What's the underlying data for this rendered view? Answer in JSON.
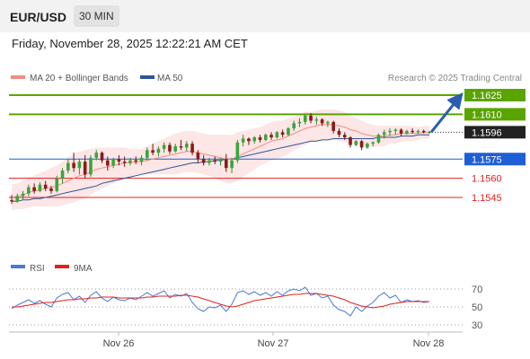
{
  "header": {
    "symbol": "EUR/USD",
    "timeframe": "30 MIN",
    "datetime": "Friday, November 28, 2025 12:22:21 AM CET"
  },
  "legend": {
    "items": [
      {
        "label": "MA 20 + Bollinger Bands",
        "color": "#f28b82"
      },
      {
        "label": "MA 50",
        "color": "#2f5597"
      }
    ],
    "credit": "Research © 2025 Trading Central"
  },
  "chart_data": {
    "type": "candlestick",
    "instrument": "EUR/USD",
    "interval": "30 MIN",
    "price_range": [
      1.1535,
      1.163
    ],
    "current_price": 1.1596,
    "current_price_label": "1.1596",
    "levels": [
      {
        "value": 1.1625,
        "label": "1.1625",
        "kind": "target",
        "color": "#5aa400"
      },
      {
        "value": 1.161,
        "label": "1.1610",
        "kind": "target",
        "color": "#5aa400"
      },
      {
        "value": 1.1575,
        "label": "1.1575",
        "kind": "pivot",
        "color": "#1f5fd6"
      },
      {
        "value": 1.156,
        "label": "1.1560",
        "kind": "support",
        "color": "#e02020"
      },
      {
        "value": 1.1545,
        "label": "1.1545",
        "kind": "support",
        "color": "#e02020"
      }
    ],
    "x_labels": [
      "Nov 26",
      "Nov 27",
      "Nov 28"
    ],
    "candles": [
      [
        1.1543,
        1.1547,
        1.154,
        1.1542
      ],
      [
        1.1542,
        1.1548,
        1.1541,
        1.1546
      ],
      [
        1.1546,
        1.155,
        1.1543,
        1.1548
      ],
      [
        1.1548,
        1.1555,
        1.1546,
        1.1553
      ],
      [
        1.1553,
        1.1556,
        1.1548,
        1.155
      ],
      [
        1.155,
        1.1557,
        1.1549,
        1.1555
      ],
      [
        1.1555,
        1.1558,
        1.155,
        1.1552
      ],
      [
        1.1552,
        1.1554,
        1.1548,
        1.155
      ],
      [
        1.155,
        1.1562,
        1.1549,
        1.156
      ],
      [
        1.156,
        1.1568,
        1.1556,
        1.1566
      ],
      [
        1.1566,
        1.1575,
        1.1564,
        1.1572
      ],
      [
        1.1572,
        1.158,
        1.1565,
        1.1568
      ],
      [
        1.1568,
        1.1575,
        1.1563,
        1.1573
      ],
      [
        1.1573,
        1.1578,
        1.156,
        1.1563
      ],
      [
        1.1563,
        1.1578,
        1.1561,
        1.1576
      ],
      [
        1.1576,
        1.1582,
        1.1574,
        1.158
      ],
      [
        1.158,
        1.1581,
        1.1572,
        1.1574
      ],
      [
        1.1574,
        1.1577,
        1.1566,
        1.157
      ],
      [
        1.157,
        1.1576,
        1.1568,
        1.1575
      ],
      [
        1.1575,
        1.1578,
        1.157,
        1.1573
      ],
      [
        1.1573,
        1.1577,
        1.1569,
        1.1572
      ],
      [
        1.1572,
        1.1576,
        1.157,
        1.1574
      ],
      [
        1.1574,
        1.1577,
        1.1571,
        1.1573
      ],
      [
        1.1573,
        1.1578,
        1.157,
        1.1576
      ],
      [
        1.1576,
        1.1584,
        1.1574,
        1.1582
      ],
      [
        1.1582,
        1.1587,
        1.1578,
        1.158
      ],
      [
        1.158,
        1.1585,
        1.1577,
        1.1583
      ],
      [
        1.1583,
        1.1588,
        1.158,
        1.1586
      ],
      [
        1.1586,
        1.1588,
        1.1579,
        1.1581
      ],
      [
        1.1581,
        1.1587,
        1.158,
        1.1585
      ],
      [
        1.1585,
        1.159,
        1.1582,
        1.1584
      ],
      [
        1.1584,
        1.1589,
        1.1581,
        1.1587
      ],
      [
        1.1587,
        1.1589,
        1.1578,
        1.158
      ],
      [
        1.158,
        1.1582,
        1.1572,
        1.1575
      ],
      [
        1.1575,
        1.1578,
        1.157,
        1.1572
      ],
      [
        1.1572,
        1.1576,
        1.157,
        1.1574
      ],
      [
        1.1574,
        1.1577,
        1.1571,
        1.1573
      ],
      [
        1.1573,
        1.1576,
        1.157,
        1.1575
      ],
      [
        1.1575,
        1.1579,
        1.1565,
        1.1568
      ],
      [
        1.1568,
        1.1576,
        1.1564,
        1.1574
      ],
      [
        1.1574,
        1.159,
        1.1572,
        1.1588
      ],
      [
        1.1588,
        1.1594,
        1.1585,
        1.1591
      ],
      [
        1.1591,
        1.1592,
        1.1586,
        1.1589
      ],
      [
        1.1589,
        1.1593,
        1.1587,
        1.1592
      ],
      [
        1.1592,
        1.1594,
        1.1588,
        1.159
      ],
      [
        1.159,
        1.1595,
        1.1589,
        1.1594
      ],
      [
        1.1594,
        1.1596,
        1.159,
        1.1592
      ],
      [
        1.1592,
        1.1597,
        1.1591,
        1.1596
      ],
      [
        1.1596,
        1.1598,
        1.1592,
        1.1594
      ],
      [
        1.1594,
        1.16,
        1.1593,
        1.1599
      ],
      [
        1.1599,
        1.1605,
        1.1597,
        1.1603
      ],
      [
        1.1603,
        1.1607,
        1.16,
        1.1604
      ],
      [
        1.1604,
        1.161,
        1.1602,
        1.1609
      ],
      [
        1.1609,
        1.1611,
        1.1603,
        1.1605
      ],
      [
        1.1605,
        1.1608,
        1.1602,
        1.1606
      ],
      [
        1.1606,
        1.1607,
        1.1601,
        1.1603
      ],
      [
        1.1603,
        1.1605,
        1.16,
        1.1604
      ],
      [
        1.1604,
        1.1605,
        1.1595,
        1.1597
      ],
      [
        1.1597,
        1.1599,
        1.1592,
        1.1594
      ],
      [
        1.1594,
        1.1596,
        1.159,
        1.1592
      ],
      [
        1.1592,
        1.1593,
        1.1584,
        1.1586
      ],
      [
        1.1586,
        1.159,
        1.1585,
        1.1589
      ],
      [
        1.1589,
        1.159,
        1.1582,
        1.1584
      ],
      [
        1.1584,
        1.1588,
        1.1583,
        1.1587
      ],
      [
        1.1587,
        1.1589,
        1.1585,
        1.1588
      ],
      [
        1.1588,
        1.1595,
        1.1587,
        1.1594
      ],
      [
        1.1594,
        1.1598,
        1.1591,
        1.1596
      ],
      [
        1.1596,
        1.1599,
        1.1593,
        1.1597
      ],
      [
        1.1597,
        1.1599,
        1.1594,
        1.1598
      ],
      [
        1.1598,
        1.1599,
        1.1593,
        1.1595
      ],
      [
        1.1595,
        1.1598,
        1.1594,
        1.1597
      ],
      [
        1.1597,
        1.1599,
        1.1595,
        1.1596
      ],
      [
        1.1596,
        1.1598,
        1.1595,
        1.1597
      ],
      [
        1.1597,
        1.1598,
        1.1595,
        1.1596
      ],
      [
        1.1596,
        1.1597,
        1.1595,
        1.1596
      ]
    ],
    "ma20": [
      1.1545,
      1.1546,
      1.1547,
      1.1549,
      1.155,
      1.1551,
      1.1552,
      1.1553,
      1.1554,
      1.1556,
      1.1558,
      1.156,
      1.1562,
      1.1563,
      1.1565,
      1.1567,
      1.1568,
      1.1569,
      1.157,
      1.1571,
      1.1572,
      1.1572,
      1.1573,
      1.1573,
      1.1574,
      1.1575,
      1.1576,
      1.1577,
      1.1578,
      1.1579,
      1.158,
      1.1581,
      1.1581,
      1.158,
      1.1579,
      1.1578,
      1.1577,
      1.1576,
      1.1575,
      1.1575,
      1.1577,
      1.1579,
      1.1581,
      1.1583,
      1.1585,
      1.1587,
      1.1589,
      1.159,
      1.1591,
      1.1593,
      1.1595,
      1.1597,
      1.1599,
      1.16,
      1.1601,
      1.1602,
      1.1602,
      1.1602,
      1.1601,
      1.16,
      1.1598,
      1.1597,
      1.1595,
      1.1594,
      1.1593,
      1.1593,
      1.1593,
      1.1594,
      1.1594,
      1.1595,
      1.1595,
      1.1595,
      1.1595,
      1.1596,
      1.1596
    ],
    "ma50": [
      1.1542,
      1.1542,
      1.1543,
      1.1543,
      1.1544,
      1.1544,
      1.1545,
      1.1546,
      1.1547,
      1.1548,
      1.1549,
      1.155,
      1.1551,
      1.1552,
      1.1553,
      1.1554,
      1.1556,
      1.1557,
      1.1558,
      1.1559,
      1.156,
      1.1561,
      1.1562,
      1.1563,
      1.1564,
      1.1565,
      1.1566,
      1.1567,
      1.1568,
      1.1569,
      1.157,
      1.1571,
      1.1572,
      1.1572,
      1.1573,
      1.1573,
      1.1574,
      1.1574,
      1.1575,
      1.1575,
      1.1576,
      1.1577,
      1.1578,
      1.1579,
      1.158,
      1.1581,
      1.1582,
      1.1583,
      1.1584,
      1.1585,
      1.1586,
      1.1587,
      1.1588,
      1.1589,
      1.1589,
      1.159,
      1.159,
      1.1591,
      1.1591,
      1.1591,
      1.1591,
      1.1591,
      1.1591,
      1.1591,
      1.1591,
      1.1592,
      1.1592,
      1.1592,
      1.1592,
      1.1593,
      1.1593,
      1.1593,
      1.1594,
      1.1594,
      1.1594
    ],
    "bb_width": [
      0.001,
      0.001,
      0.0011,
      0.0012,
      0.0012,
      0.0013,
      0.0014,
      0.0015,
      0.0016,
      0.0017,
      0.0018,
      0.0019,
      0.0019,
      0.0019,
      0.0018,
      0.0017,
      0.0016,
      0.0015,
      0.0014,
      0.0013,
      0.0012,
      0.0011,
      0.001,
      0.001,
      0.0011,
      0.0012,
      0.0013,
      0.0014,
      0.0015,
      0.0016,
      0.0016,
      0.0016,
      0.0016,
      0.0016,
      0.0016,
      0.0016,
      0.0017,
      0.0018,
      0.0019,
      0.0019,
      0.0019,
      0.0018,
      0.0017,
      0.0016,
      0.0015,
      0.0015,
      0.0015,
      0.0015,
      0.0014,
      0.0014,
      0.0013,
      0.0013,
      0.0013,
      0.0012,
      0.0012,
      0.0012,
      0.0012,
      0.0012,
      0.0012,
      0.0012,
      0.0011,
      0.001,
      0.001,
      0.0009,
      0.0009,
      0.0008,
      0.0008,
      0.0007,
      0.0007,
      0.0006,
      0.0006,
      0.0006,
      0.0005,
      0.0005,
      0.0005
    ],
    "forecast_arrow": {
      "from": 1.1596,
      "to": 1.1625
    }
  },
  "rsi_panel": {
    "legend": [
      {
        "label": "RSI",
        "color": "#4a78d6"
      },
      {
        "label": "9MA",
        "color": "#e02020"
      }
    ],
    "levels": [
      {
        "value": 70,
        "label": "70"
      },
      {
        "value": 50,
        "label": "50"
      },
      {
        "value": 30,
        "label": "30"
      }
    ],
    "range": [
      20,
      80
    ],
    "rsi": [
      48,
      52,
      55,
      58,
      54,
      57,
      53,
      50,
      60,
      64,
      66,
      58,
      62,
      55,
      63,
      67,
      60,
      56,
      61,
      58,
      57,
      60,
      58,
      62,
      66,
      62,
      65,
      68,
      60,
      64,
      62,
      65,
      55,
      48,
      45,
      50,
      49,
      52,
      45,
      53,
      66,
      68,
      64,
      67,
      63,
      66,
      62,
      67,
      63,
      68,
      70,
      68,
      72,
      63,
      65,
      60,
      62,
      52,
      47,
      45,
      40,
      50,
      45,
      51,
      55,
      62,
      66,
      60,
      63,
      55,
      58,
      56,
      57,
      55,
      56
    ],
    "ma9": [
      50,
      50,
      51,
      52,
      53,
      54,
      55,
      55,
      56,
      57,
      58,
      58,
      59,
      59,
      60,
      60,
      61,
      61,
      61,
      60,
      60,
      60,
      60,
      60,
      61,
      61,
      62,
      62,
      62,
      62,
      63,
      63,
      62,
      61,
      59,
      57,
      55,
      53,
      51,
      50,
      51,
      53,
      55,
      57,
      58,
      59,
      60,
      61,
      62,
      63,
      64,
      64,
      65,
      65,
      65,
      64,
      63,
      62,
      60,
      58,
      55,
      53,
      51,
      50,
      49,
      50,
      51,
      53,
      54,
      55,
      56,
      56,
      56,
      56,
      56
    ]
  }
}
